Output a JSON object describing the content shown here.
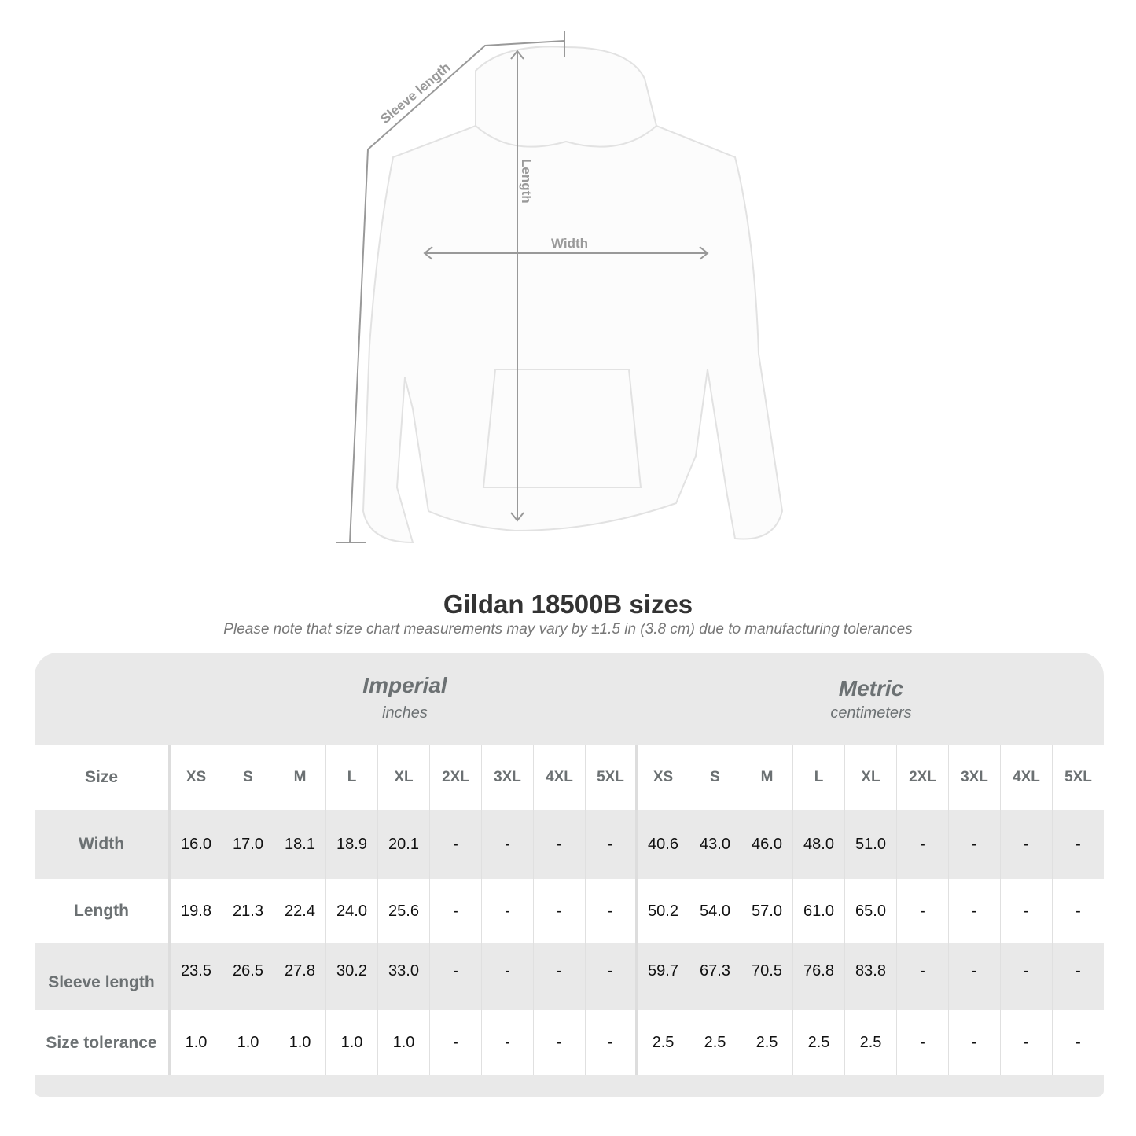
{
  "diagram": {
    "sleeve_label": "Sleeve length",
    "length_label": "Length",
    "width_label": "Width"
  },
  "title": "Gildan 18500B sizes",
  "subtitle": "Please note that size chart measurements may vary by ±1.5 in (3.8 cm) due to manufacturing tolerances",
  "imperial": {
    "title": "Imperial",
    "unit": "inches"
  },
  "metric": {
    "title": "Metric",
    "unit": "centimeters"
  },
  "size_label": "Size",
  "sizes": [
    "XS",
    "S",
    "M",
    "L",
    "XL",
    "2XL",
    "3XL",
    "4XL",
    "5XL"
  ],
  "rows": [
    {
      "label": "Width",
      "imperial": [
        "16.0",
        "17.0",
        "18.1",
        "18.9",
        "20.1",
        "-",
        "-",
        "-",
        "-"
      ],
      "metric": [
        "40.6",
        "43.0",
        "46.0",
        "48.0",
        "51.0",
        "-",
        "-",
        "-",
        "-"
      ]
    },
    {
      "label": "Length",
      "imperial": [
        "19.8",
        "21.3",
        "22.4",
        "24.0",
        "25.6",
        "-",
        "-",
        "-",
        "-"
      ],
      "metric": [
        "50.2",
        "54.0",
        "57.0",
        "61.0",
        "65.0",
        "-",
        "-",
        "-",
        "-"
      ]
    },
    {
      "label": "Sleeve length",
      "imperial": [
        "23.5",
        "26.5",
        "27.8",
        "30.2",
        "33.0",
        "-",
        "-",
        "-",
        "-"
      ],
      "metric": [
        "59.7",
        "67.3",
        "70.5",
        "76.8",
        "83.8",
        "-",
        "-",
        "-",
        "-"
      ]
    },
    {
      "label": "Size tolerance",
      "imperial": [
        "1.0",
        "1.0",
        "1.0",
        "1.0",
        "1.0",
        "-",
        "-",
        "-",
        "-"
      ],
      "metric": [
        "2.5",
        "2.5",
        "2.5",
        "2.5",
        "2.5",
        "-",
        "-",
        "-",
        "-"
      ]
    }
  ]
}
